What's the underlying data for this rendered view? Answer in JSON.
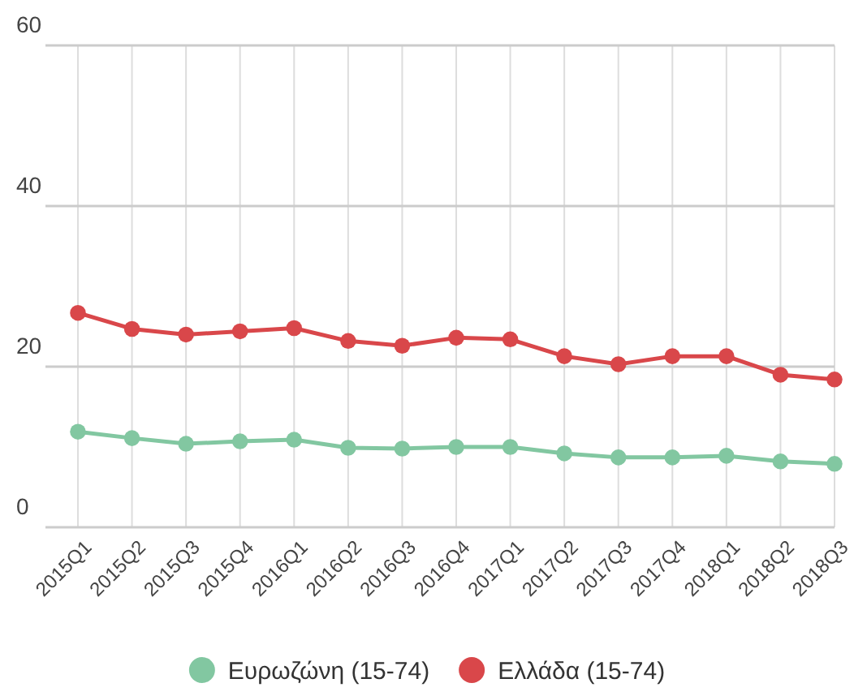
{
  "chart_data": {
    "type": "line",
    "categories": [
      "2015Q1",
      "2015Q2",
      "2015Q3",
      "2015Q4",
      "2016Q1",
      "2016Q2",
      "2016Q3",
      "2016Q4",
      "2017Q1",
      "2017Q2",
      "2017Q3",
      "2017Q4",
      "2018Q1",
      "2018Q2",
      "2018Q3"
    ],
    "series": [
      {
        "name": "Ευρωζώνη (15-74)",
        "color": "#82c7a1",
        "values": [
          11.9,
          11.1,
          10.4,
          10.7,
          10.9,
          9.9,
          9.8,
          10.0,
          10.0,
          9.2,
          8.7,
          8.7,
          8.9,
          8.2,
          7.9
        ]
      },
      {
        "name": "Ελλάδα (15-74)",
        "color": "#d9474a",
        "values": [
          26.7,
          24.7,
          24.0,
          24.4,
          24.8,
          23.2,
          22.6,
          23.6,
          23.4,
          21.3,
          20.3,
          21.3,
          21.3,
          19.0,
          18.4
        ]
      }
    ],
    "ylim": [
      0,
      60
    ],
    "yticks": [
      0,
      20,
      40,
      60
    ],
    "grid": true,
    "legend": "bottom",
    "marker": "circle",
    "line_style": "solid"
  }
}
